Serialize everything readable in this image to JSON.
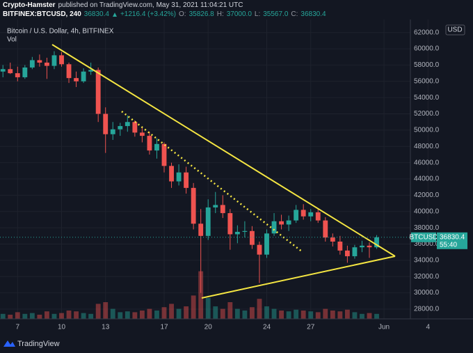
{
  "header": {
    "author": "Crypto-Hamster",
    "published": "published on TradingView.com, May 31, 2021 11:04:21 UTC",
    "symbol": "BITFINEX:BTCUSD, 240",
    "change": "+1216.4 (+3.42%)",
    "ohlc": [
      {
        "label": "O:",
        "value": "35826.8"
      },
      {
        "label": "H:",
        "value": "37000.0"
      },
      {
        "label": "L:",
        "value": "35567.0"
      },
      {
        "label": "C:"
      }
    ]
  },
  "brand": "TradingView",
  "chart_data": {
    "type": "candlestick",
    "title": "Bitcoin / U.S. Dollar, 4h, BITFINEX",
    "volume_label": "Vol",
    "y_unit": "USD",
    "symbol_tag": "BTCUSD",
    "countdown": "55:40",
    "up_color": "#26a69a",
    "down_color": "#ef5350",
    "grid": true,
    "x": [
      6,
      6.5,
      7,
      7.5,
      8,
      8.5,
      9,
      9.5,
      10,
      10.5,
      11,
      11.5,
      12,
      12.5,
      13,
      13.5,
      14,
      14.5,
      15,
      15.5,
      16,
      16.5,
      17,
      17.5,
      18,
      18.5,
      19,
      19.5,
      20,
      20.5,
      21,
      21.5,
      22,
      22.5,
      23,
      23.5,
      24,
      24.5,
      25,
      25.5,
      26,
      26.5,
      27,
      27.5,
      28,
      28.5,
      29,
      29.5,
      30,
      30.5,
      31,
      31.5
    ],
    "open": [
      57200,
      57500,
      57000,
      56500,
      57700,
      58600,
      58300,
      57900,
      59200,
      58100,
      56400,
      56000,
      57200,
      57400,
      52000,
      49500,
      50100,
      50500,
      51000,
      49700,
      49300,
      47500,
      48300,
      45600,
      43700,
      44800,
      42900,
      38500,
      37000,
      40500,
      40800,
      39800,
      37200,
      37500,
      37600,
      35900,
      34700,
      37300,
      38800,
      38400,
      38900,
      40200,
      39400,
      39900,
      38900,
      36800,
      36300,
      35200,
      34500,
      35600,
      35800,
      35600
    ],
    "high": [
      58000,
      58300,
      57800,
      58000,
      59000,
      59300,
      58900,
      59700,
      59600,
      58300,
      57200,
      57600,
      58300,
      57700,
      52800,
      51000,
      50900,
      51800,
      51200,
      50400,
      49800,
      49000,
      48500,
      46000,
      45800,
      45500,
      43500,
      40300,
      41500,
      42400,
      42000,
      40300,
      38300,
      38800,
      38200,
      36300,
      37800,
      39800,
      39600,
      39500,
      40800,
      40900,
      40300,
      40400,
      39300,
      37300,
      37000,
      35800,
      35900,
      36400,
      36200,
      37100
    ],
    "low": [
      56500,
      56900,
      56000,
      56300,
      57500,
      57800,
      56300,
      57500,
      57800,
      55800,
      55300,
      55800,
      56800,
      51000,
      47200,
      48800,
      49300,
      49800,
      49200,
      48500,
      47000,
      46500,
      44800,
      42900,
      43200,
      42200,
      37800,
      30000,
      36500,
      39800,
      39200,
      35300,
      36100,
      36800,
      35400,
      31200,
      34300,
      37000,
      37800,
      37600,
      38600,
      39000,
      38800,
      38600,
      36300,
      35700,
      34700,
      33700,
      34200,
      35000,
      34300,
      35400
    ],
    "close": [
      57500,
      57000,
      56500,
      57700,
      58600,
      58300,
      57900,
      59200,
      58100,
      56400,
      56000,
      57200,
      57400,
      52000,
      49500,
      50100,
      50500,
      51000,
      49700,
      49300,
      47500,
      48300,
      45600,
      43700,
      44800,
      42900,
      38500,
      37000,
      40500,
      40800,
      39800,
      37200,
      37500,
      37600,
      35900,
      34700,
      37300,
      38800,
      38400,
      38900,
      40200,
      39400,
      39900,
      38900,
      36800,
      36300,
      35200,
      34500,
      35600,
      35800,
      35600,
      36830.4
    ],
    "volume": [
      6,
      5,
      8,
      6,
      7,
      5,
      9,
      6,
      7,
      10,
      9,
      7,
      6,
      18,
      20,
      12,
      8,
      9,
      8,
      10,
      12,
      10,
      14,
      18,
      12,
      15,
      28,
      57,
      25,
      15,
      12,
      20,
      12,
      10,
      14,
      24,
      15,
      12,
      10,
      9,
      11,
      10,
      9,
      8,
      12,
      10,
      9,
      11,
      8,
      6,
      7,
      6
    ],
    "vollim": [
      0,
      100
    ],
    "xlim": [
      5.8,
      33.8
    ],
    "xticks": [
      7,
      10,
      13,
      17,
      20,
      24,
      27,
      {
        "value": 32,
        "label": "Jun"
      },
      {
        "value": 35,
        "label": "4"
      }
    ],
    "ylim": [
      26800,
      63600
    ],
    "yticks": [
      {
        "value": 28000,
        "label": "28000.0"
      },
      {
        "value": 30000,
        "label": "30000.0"
      },
      {
        "value": 32000,
        "label": "32000.0"
      },
      {
        "value": 34000,
        "label": "34000.0"
      },
      {
        "value": 36000,
        "label": "36000.0"
      },
      {
        "value": 38000,
        "label": "38000.0"
      },
      {
        "value": 40000,
        "label": "40000.0"
      },
      {
        "value": 42000,
        "label": "42000.0"
      },
      {
        "value": 44000,
        "label": "44000.0"
      },
      {
        "value": 46000,
        "label": "46000.0"
      },
      {
        "value": 48000,
        "label": "48000.0"
      },
      {
        "value": 50000,
        "label": "50000.0"
      },
      {
        "value": 52000,
        "label": "52000.0"
      },
      {
        "value": 54000,
        "label": "54000.0"
      },
      {
        "value": 56000,
        "label": "56000.0"
      },
      {
        "value": 58000,
        "label": "58000.0"
      },
      {
        "value": 60000,
        "label": "60000.0"
      },
      {
        "value": 62000,
        "label": "62000.0"
      }
    ]
  }
}
